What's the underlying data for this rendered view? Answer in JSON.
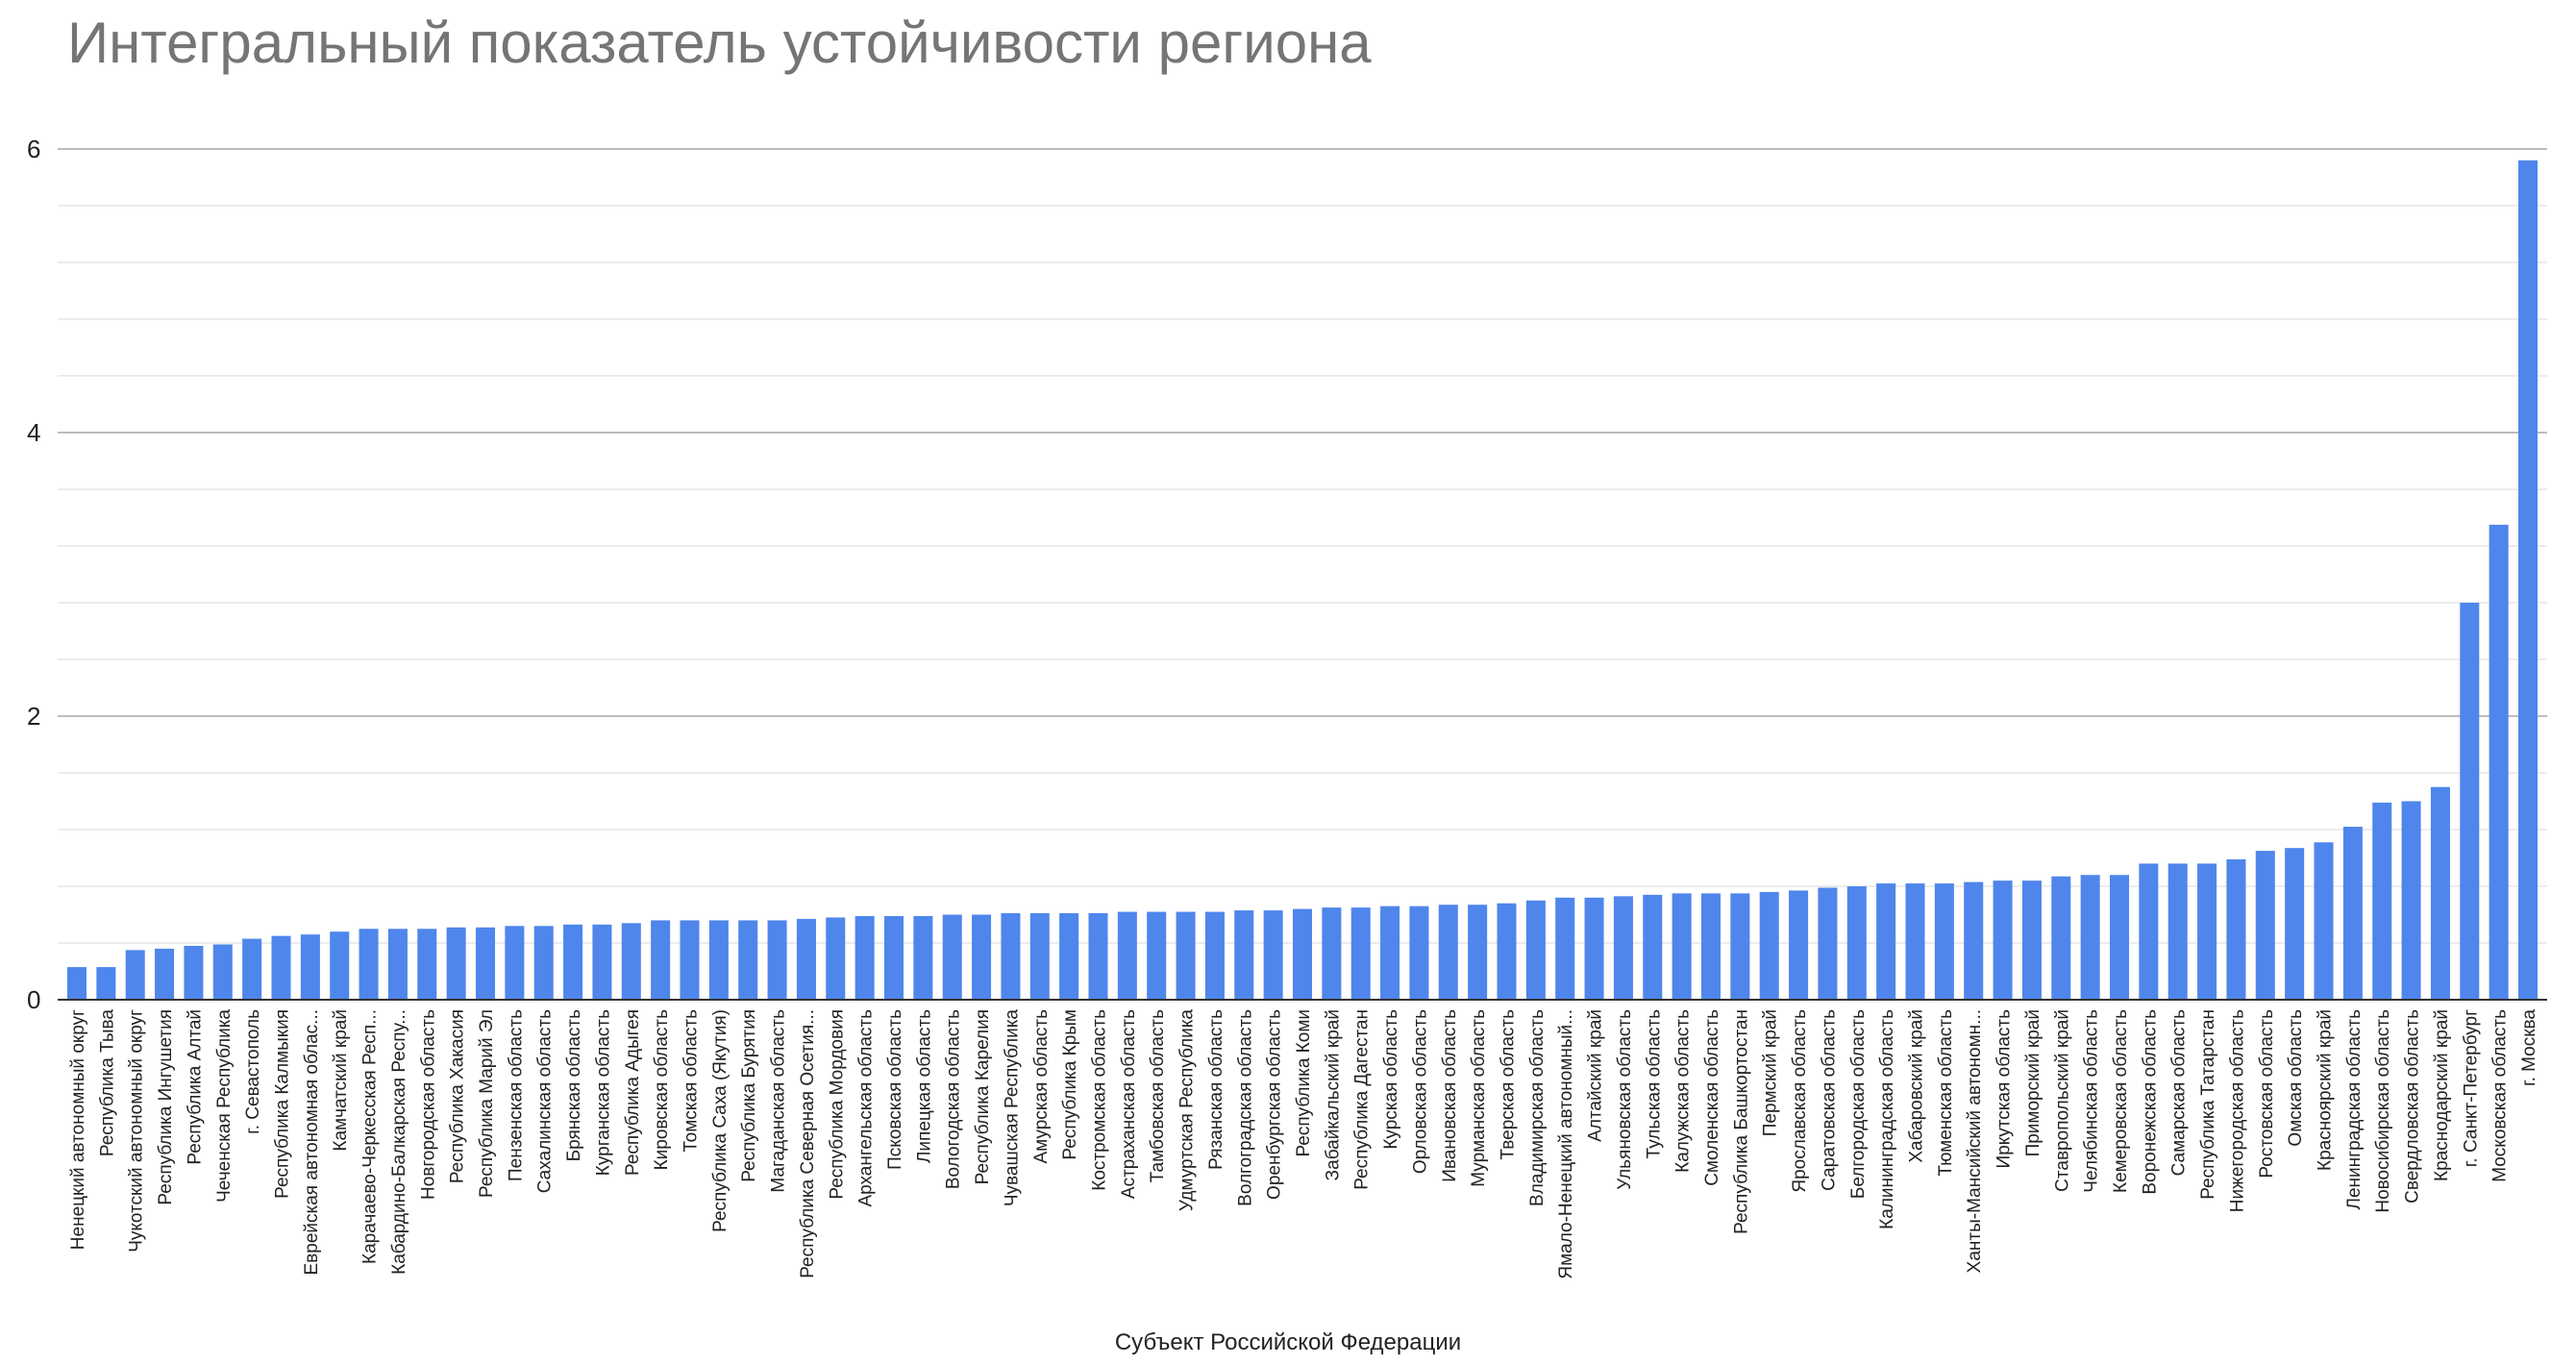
{
  "chart_data": {
    "type": "bar",
    "title": "Интегральный показатель устойчивости региона",
    "xlabel": "Субъект Российской Федерации",
    "ylabel": "",
    "ylim": [
      0,
      6
    ],
    "yticks": [
      "0",
      "2",
      "4",
      "6"
    ],
    "grid": true,
    "bar_color": "#4f86ec",
    "categories": [
      "Ненецкий автономный округ",
      "Республика Тыва",
      "Чукотский автономный округ",
      "Республика Ингушетия",
      "Республика Алтай",
      "Чеченская Республика",
      "г. Севастополь",
      "Республика Калмыкия",
      "Еврейская автономная облас...",
      "Камчатский край",
      "Карачаево-Черкесская Респ...",
      "Кабардино-Балкарская Респу...",
      "Новгородская область",
      "Республика Хакасия",
      "Республика Марий Эл",
      "Пензенская область",
      "Сахалинская область",
      "Брянская область",
      "Курганская область",
      "Республика Адыгея",
      "Кировская область",
      "Томская область",
      "Республика Саха (Якутия)",
      "Республика Бурятия",
      "Магаданская область",
      "Республика Северная Осетия...",
      "Республика Мордовия",
      "Архангельская область",
      "Псковская область",
      "Липецкая область",
      "Вологодская область",
      "Республика Карелия",
      "Чувашская Республика",
      "Амурская область",
      "Республика Крым",
      "Костромская область",
      "Астраханская область",
      "Тамбовская область",
      "Удмуртская Республика",
      "Рязанская область",
      "Волгоградская область",
      "Оренбургская область",
      "Республика Коми",
      "Забайкальский край",
      "Республика Дагестан",
      "Курская область",
      "Орловская область",
      "Ивановская область",
      "Мурманская область",
      "Тверская область",
      "Владимирская область",
      "Ямало-Ненецкий автономный...",
      "Алтайский край",
      "Ульяновская область",
      "Тульская область",
      "Калужская область",
      "Смоленская область",
      "Республика Башкортостан",
      "Пермский край",
      "Ярославская область",
      "Саратовская область",
      "Белгородская область",
      "Калининградская область",
      "Хабаровский край",
      "Тюменская область",
      "Ханты-Мансийский автономн...",
      "Иркутская область",
      "Приморский край",
      "Ставропольский край",
      "Челябинская область",
      "Кемеровская область",
      "Воронежская область",
      "Самарская область",
      "Республика Татарстан",
      "Нижегородская область",
      "Ростовская область",
      "Омская область",
      "Красноярский край",
      "Ленинградская область",
      "Новосибирская область",
      "Свердловская область",
      "Краснодарский край",
      "г. Санкт-Петербург",
      "Московская область",
      "г. Москва"
    ],
    "values": [
      0.23,
      0.23,
      0.35,
      0.36,
      0.38,
      0.39,
      0.43,
      0.45,
      0.46,
      0.48,
      0.5,
      0.5,
      0.5,
      0.51,
      0.51,
      0.52,
      0.52,
      0.53,
      0.53,
      0.54,
      0.56,
      0.56,
      0.56,
      0.56,
      0.56,
      0.57,
      0.58,
      0.59,
      0.59,
      0.59,
      0.6,
      0.6,
      0.61,
      0.61,
      0.61,
      0.61,
      0.62,
      0.62,
      0.62,
      0.62,
      0.63,
      0.63,
      0.64,
      0.65,
      0.65,
      0.66,
      0.66,
      0.67,
      0.67,
      0.68,
      0.7,
      0.72,
      0.72,
      0.73,
      0.74,
      0.75,
      0.75,
      0.75,
      0.76,
      0.77,
      0.79,
      0.8,
      0.82,
      0.82,
      0.82,
      0.83,
      0.84,
      0.84,
      0.87,
      0.88,
      0.88,
      0.96,
      0.96,
      0.96,
      0.99,
      1.05,
      1.07,
      1.11,
      1.22,
      1.39,
      1.4,
      1.5,
      2.8,
      3.35,
      5.92
    ]
  }
}
